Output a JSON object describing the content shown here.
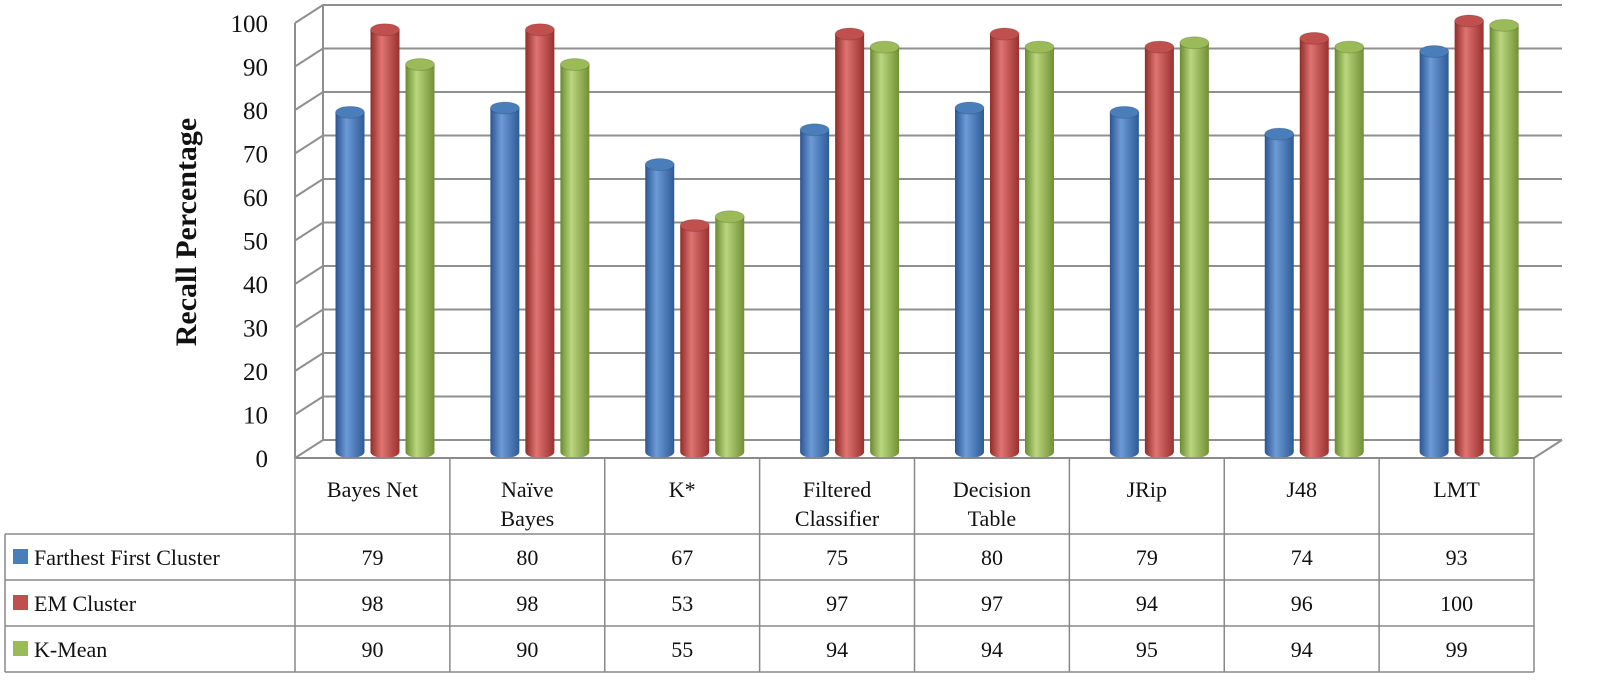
{
  "chart_data": {
    "type": "bar",
    "title": "",
    "xlabel": "",
    "ylabel": "Recall Percentage",
    "ylim": [
      0,
      100
    ],
    "yticks": [
      0,
      10,
      20,
      30,
      40,
      50,
      60,
      70,
      80,
      90,
      100
    ],
    "grid": true,
    "style": "3d-cylinder-with-data-table",
    "categories": [
      [
        "Bayes Net"
      ],
      [
        "Naïve",
        "Bayes"
      ],
      [
        "K*"
      ],
      [
        "Filtered",
        "Classifier"
      ],
      [
        "Decision",
        "Table"
      ],
      [
        "JRip"
      ],
      [
        "J48"
      ],
      [
        "LMT"
      ]
    ],
    "series": [
      {
        "name": "Farthest First Cluster",
        "color": "#4a7ebb",
        "values": [
          79,
          80,
          67,
          75,
          80,
          79,
          74,
          93
        ]
      },
      {
        "name": "EM Cluster",
        "color": "#c0504d",
        "values": [
          98,
          98,
          53,
          97,
          97,
          94,
          96,
          100
        ]
      },
      {
        "name": "K-Mean",
        "color": "#9bbb59",
        "values": [
          90,
          90,
          55,
          94,
          94,
          95,
          94,
          99
        ]
      }
    ]
  }
}
